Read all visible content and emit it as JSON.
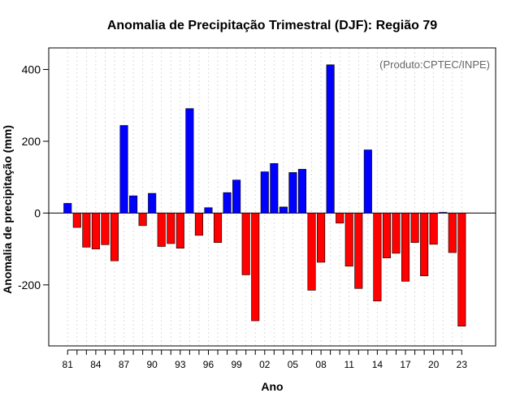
{
  "chart_data": {
    "type": "bar",
    "title": "Anomalia de Precipitação Trimestral (DJF): Região 79",
    "xlabel": "Ano",
    "ylabel": "Anomalia de precipitação (mm)",
    "credit": "(Produto:CPTEC/INPE)",
    "ylim": [
      -370,
      460
    ],
    "yticks": [
      -200,
      0,
      200,
      400
    ],
    "xtick_labels": [
      "81",
      "84",
      "87",
      "90",
      "93",
      "96",
      "99",
      "02",
      "05",
      "08",
      "11",
      "14",
      "17",
      "20",
      "23"
    ],
    "xtick_every": 3,
    "grid": true,
    "positive_color": "#0000ff",
    "negative_color": "#ff0000",
    "categories": [
      "81",
      "82",
      "83",
      "84",
      "85",
      "86",
      "87",
      "88",
      "89",
      "90",
      "91",
      "92",
      "93",
      "94",
      "95",
      "96",
      "97",
      "98",
      "99",
      "00",
      "01",
      "02",
      "03",
      "04",
      "05",
      "06",
      "07",
      "08",
      "09",
      "10",
      "11",
      "12",
      "13",
      "14",
      "15",
      "16",
      "17",
      "18",
      "19",
      "20",
      "21",
      "22",
      "23"
    ],
    "values": [
      27,
      -40,
      -95,
      -100,
      -88,
      -133,
      244,
      48,
      -35,
      55,
      -93,
      -85,
      -98,
      291,
      -62,
      15,
      -82,
      57,
      92,
      -172,
      -300,
      115,
      138,
      17,
      113,
      122,
      -215,
      -137,
      413,
      -28,
      -148,
      -210,
      176,
      -245,
      -125,
      -112,
      -190,
      -82,
      -175,
      -87,
      2,
      -110,
      -315
    ]
  }
}
